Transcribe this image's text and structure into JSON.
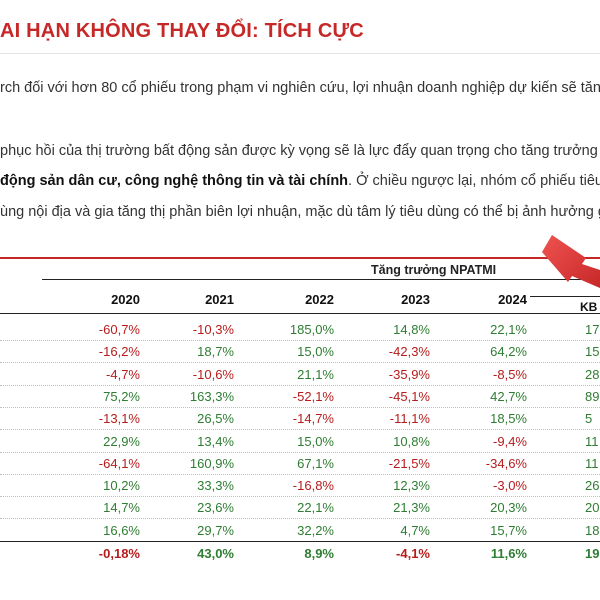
{
  "heading": {
    "title": "AI HẠN KHÔNG THAY ĐỔI: TÍCH CỰC"
  },
  "paragraphs": {
    "line1": "rch đối với hơn 80 cổ phiếu trong phạm vi nghiên cứu, lợi nhuận doanh nghiệp dự kiến sẽ tăng",
    "line2": "phục hồi của thị trường bất động sản được kỳ vọng sẽ là lực đẩy quan trọng cho tăng trưởng",
    "line3_bold": "động sản dân cư, công nghệ thông tin và tài chính",
    "line3_rest": ". Ở chiều ngược lại, nhóm cổ phiếu tiêu d",
    "line4": "ùng nội địa và gia tăng thị phần biên lợi nhuận, mặc dù tâm lý tiêu dùng có thể bị ảnh hưởng g"
  },
  "table": {
    "group_header": "Tăng trưởng NPATMI",
    "kb_label": "KB",
    "years": [
      "2020",
      "2021",
      "2022",
      "2023",
      "2024"
    ],
    "rows": [
      {
        "cells": [
          "-60,7%",
          "-10,3%",
          "185,0%",
          "14,8%",
          "22,1%"
        ],
        "partial": "17"
      },
      {
        "cells": [
          "-16,2%",
          "18,7%",
          "15,0%",
          "-42,3%",
          "64,2%"
        ],
        "partial": "15"
      },
      {
        "cells": [
          "-4,7%",
          "-10,6%",
          "21,1%",
          "-35,9%",
          "-8,5%"
        ],
        "partial": "28"
      },
      {
        "cells": [
          "75,2%",
          "163,3%",
          "-52,1%",
          "-45,1%",
          "42,7%"
        ],
        "partial": "89"
      },
      {
        "cells": [
          "-13,1%",
          "26,5%",
          "-14,7%",
          "-11,1%",
          "18,5%"
        ],
        "partial": "5"
      },
      {
        "cells": [
          "22,9%",
          "13,4%",
          "15,0%",
          "10,8%",
          "-9,4%"
        ],
        "partial": "11"
      },
      {
        "cells": [
          "-64,1%",
          "160,9%",
          "67,1%",
          "-21,5%",
          "-34,6%"
        ],
        "partial": "11"
      },
      {
        "cells": [
          "10,2%",
          "33,3%",
          "-16,8%",
          "12,3%",
          "-3,0%"
        ],
        "partial": "26"
      },
      {
        "cells": [
          "14,7%",
          "23,6%",
          "22,1%",
          "21,3%",
          "20,3%"
        ],
        "partial": "20"
      },
      {
        "cells": [
          "16,6%",
          "29,7%",
          "32,2%",
          "4,7%",
          "15,7%"
        ],
        "partial": "18"
      }
    ],
    "total": {
      "cells": [
        "-0,18%",
        "43,0%",
        "8,9%",
        "-4,1%",
        "11,6%"
      ],
      "partial": "19"
    }
  },
  "colors": {
    "accent": "#c62828",
    "negative": "#b71c1c",
    "positive": "#2e7d32",
    "arrow": "#e53935"
  }
}
